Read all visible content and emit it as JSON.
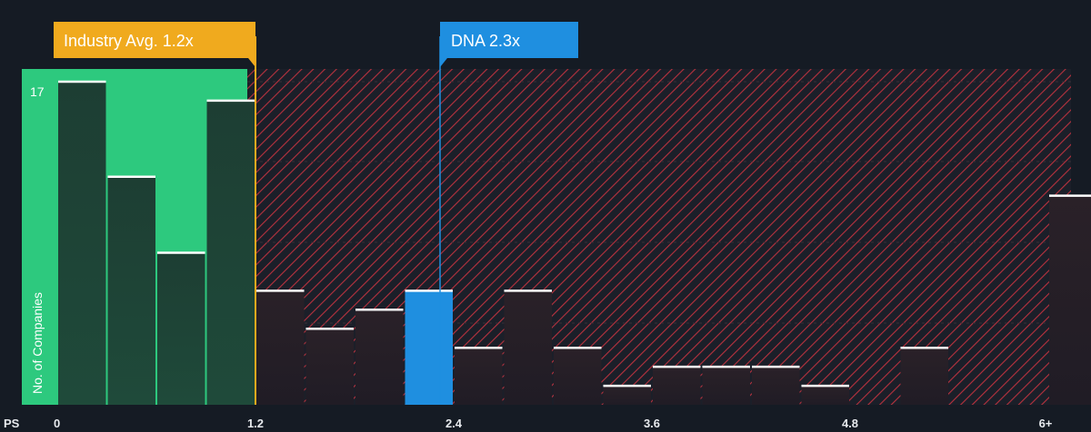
{
  "chart_data": {
    "type": "bar",
    "x_axis_label": "PS",
    "y_axis_label": "No. of Companies",
    "y_tick_label": "17",
    "x_tick_labels": [
      "0",
      "1.2",
      "2.4",
      "3.6",
      "4.8",
      "6+"
    ],
    "bin_width": 0.3,
    "values": [
      17,
      12,
      8,
      16,
      6,
      4,
      5,
      6,
      3,
      6,
      3,
      1,
      2,
      2,
      2,
      1,
      0,
      3,
      0,
      0,
      11
    ],
    "ylim": [
      0,
      17.5
    ],
    "industry_avg": {
      "label": "Industry Avg. 1.2x",
      "value": 1.2
    },
    "company": {
      "label": "DNA 2.3x",
      "value": 2.3,
      "bin_index": 7
    },
    "colors": {
      "background": "#151b24",
      "fair_zone": "#2dc97e",
      "overvalued_hatch": "#e3344a",
      "industry_marker": "#f0aa1e",
      "company_marker": "#1f8fe0",
      "bar_cap": "#ffffff"
    }
  }
}
